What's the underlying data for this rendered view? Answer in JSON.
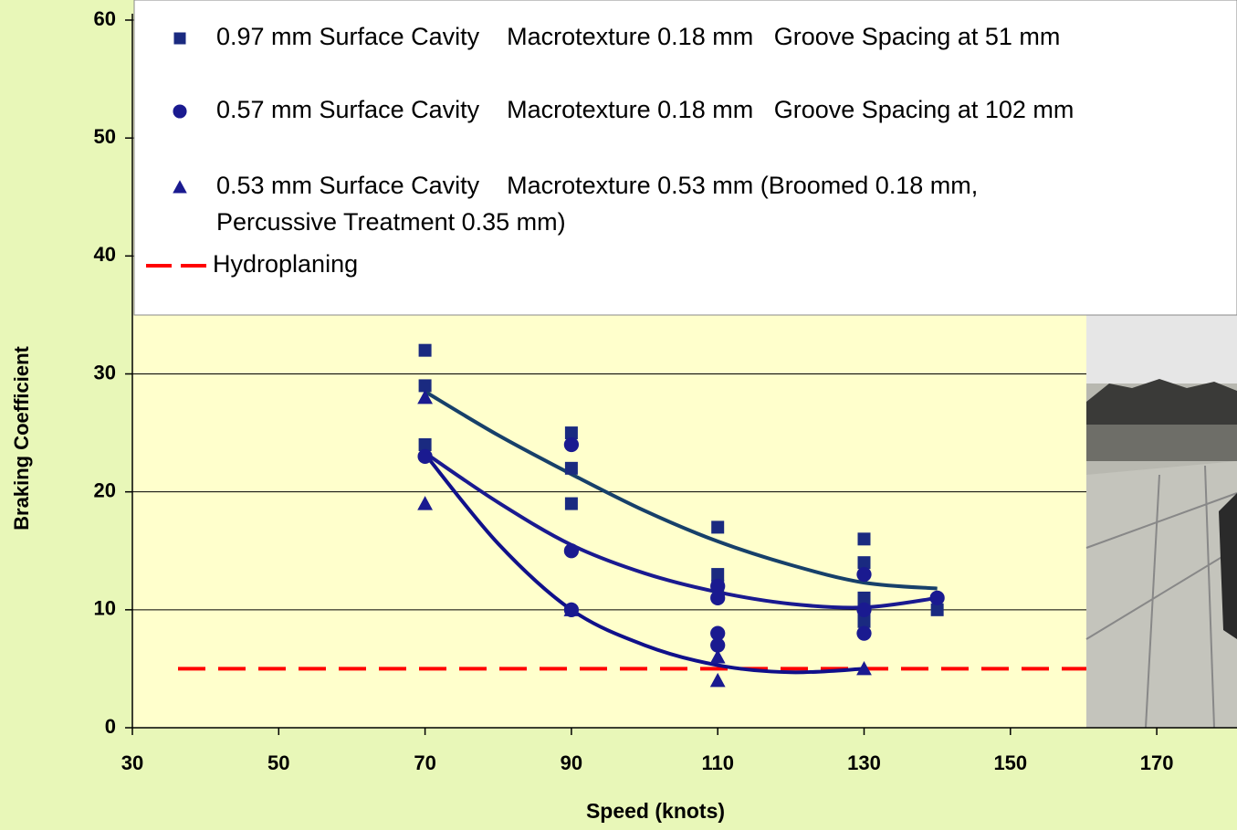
{
  "chart_data": {
    "type": "scatter",
    "x_label": "Speed (knots)",
    "y_label": "Braking Coefficient",
    "xlim": [
      30,
      180
    ],
    "xticks": [
      30,
      50,
      70,
      90,
      110,
      130,
      150,
      170
    ],
    "ylim": [
      0,
      60
    ],
    "yticks": [
      0,
      10,
      20,
      30,
      40,
      50,
      60
    ],
    "grid": true,
    "series": [
      {
        "name": [
          "0.97 mm Surface Cavity    Macrotexture 0.18 mm   Groove Spacing at 51 mm"
        ],
        "color": "#1a2a80",
        "trend_color": "#17406a",
        "marker": "square",
        "x": [
          70,
          70,
          70,
          90,
          90,
          90,
          110,
          110,
          110,
          130,
          130,
          130,
          130,
          130,
          140
        ],
        "values": [
          32,
          29,
          24,
          25,
          22,
          19,
          17,
          13,
          12,
          16,
          14,
          11,
          10,
          9,
          10
        ],
        "trend": {
          "x": [
            70,
            80,
            90,
            100,
            110,
            120,
            130,
            140
          ],
          "values": [
            28.5,
            24.8,
            21.5,
            18.4,
            15.8,
            13.8,
            12.3,
            11.8
          ]
        }
      },
      {
        "name": [
          "0.57 mm Surface Cavity    Macrotexture 0.18 mm   Groove Spacing at 102 mm"
        ],
        "color": "#1a1a90",
        "trend_color": "#1a1a90",
        "marker": "circle",
        "x": [
          70,
          90,
          90,
          90,
          110,
          110,
          110,
          110,
          130,
          130,
          130,
          140
        ],
        "values": [
          23,
          24,
          15,
          10,
          12,
          11,
          8,
          7,
          13,
          10,
          8,
          11
        ],
        "trend": {
          "x": [
            70,
            80,
            90,
            100,
            110,
            120,
            130,
            140
          ],
          "values": [
            23.3,
            19.1,
            15.5,
            13.1,
            11.5,
            10.5,
            10.2,
            11
          ]
        }
      },
      {
        "name": [
          "0.53 mm Surface Cavity    Macrotexture 0.53 mm (Broomed 0.18 mm,",
          "Percussive Treatment 0.35 mm)"
        ],
        "color": "#1a1a90",
        "trend_color": "#10108a",
        "marker": "triangle",
        "x": [
          70,
          70,
          90,
          110,
          110,
          130
        ],
        "values": [
          28,
          19,
          10,
          6,
          4,
          5
        ],
        "trend": {
          "x": [
            70,
            80,
            90,
            100,
            110,
            120,
            130
          ],
          "values": [
            23.2,
            15.6,
            10,
            7,
            5.3,
            4.7,
            5
          ]
        }
      }
    ],
    "reference_line": {
      "name": "Hydroplaning",
      "color": "#ff0000",
      "value": 5
    }
  }
}
